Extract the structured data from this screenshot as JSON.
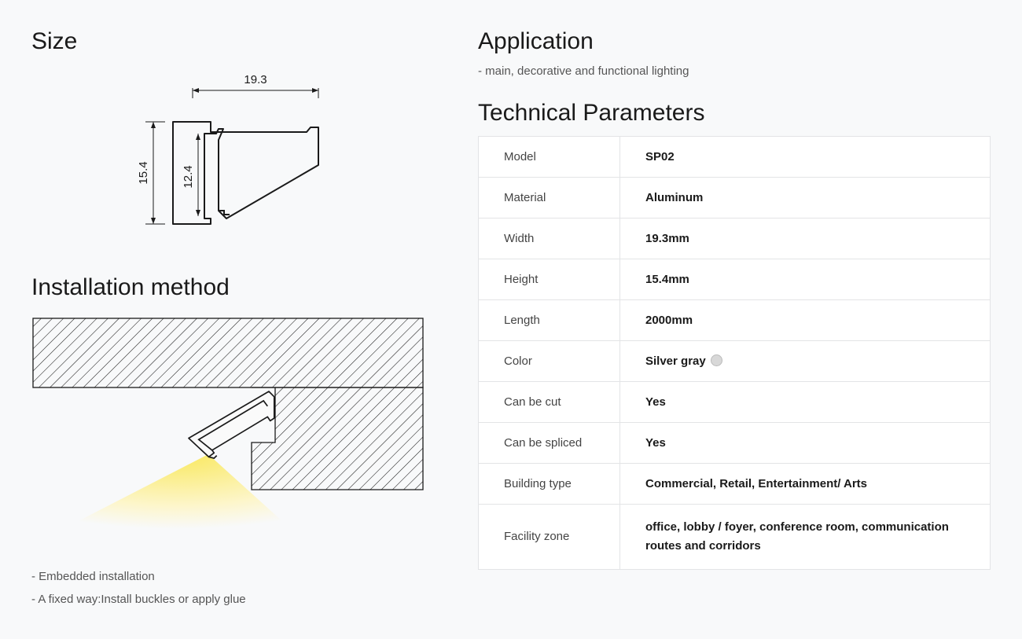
{
  "size": {
    "heading": "Size",
    "dim_top": "19.3",
    "dim_left_outer": "15.4",
    "dim_left_inner": "12.4",
    "stroke": "#1a1a1a",
    "stroke_width": 1.6
  },
  "installation": {
    "heading": "Installation method",
    "notes": [
      "- Embedded installation",
      "- A fixed way:Install buckles or apply glue"
    ],
    "hatch_color": "#1a1a1a",
    "light_gradient_inner": "#f9e85e",
    "light_gradient_outer": "#fdf6cc"
  },
  "application": {
    "heading": "Application",
    "note": "- main, decorative and functional lighting"
  },
  "tech": {
    "heading": "Technical Parameters",
    "rows": [
      {
        "label": "Model",
        "value": "SP02"
      },
      {
        "label": "Material",
        "value": "Aluminum"
      },
      {
        "label": "Width",
        "value": "19.3mm"
      },
      {
        "label": "Height",
        "value": "15.4mm"
      },
      {
        "label": "Length",
        "value": "2000mm"
      },
      {
        "label": "Color",
        "value": "Silver gray",
        "swatch": "#d8d8d8"
      },
      {
        "label": "Can be cut",
        "value": "Yes"
      },
      {
        "label": "Can be spliced",
        "value": "Yes"
      },
      {
        "label": "Building type",
        "value": "Commercial, Retail, Entertainment/ Arts"
      },
      {
        "label": "Facility zone",
        "value": "office, lobby / foyer, conference room, communication routes and corridors",
        "tall": true
      }
    ],
    "border_color": "#e3e4e6",
    "bg_color": "#ffffff"
  },
  "page_bg": "#f8f9fa"
}
